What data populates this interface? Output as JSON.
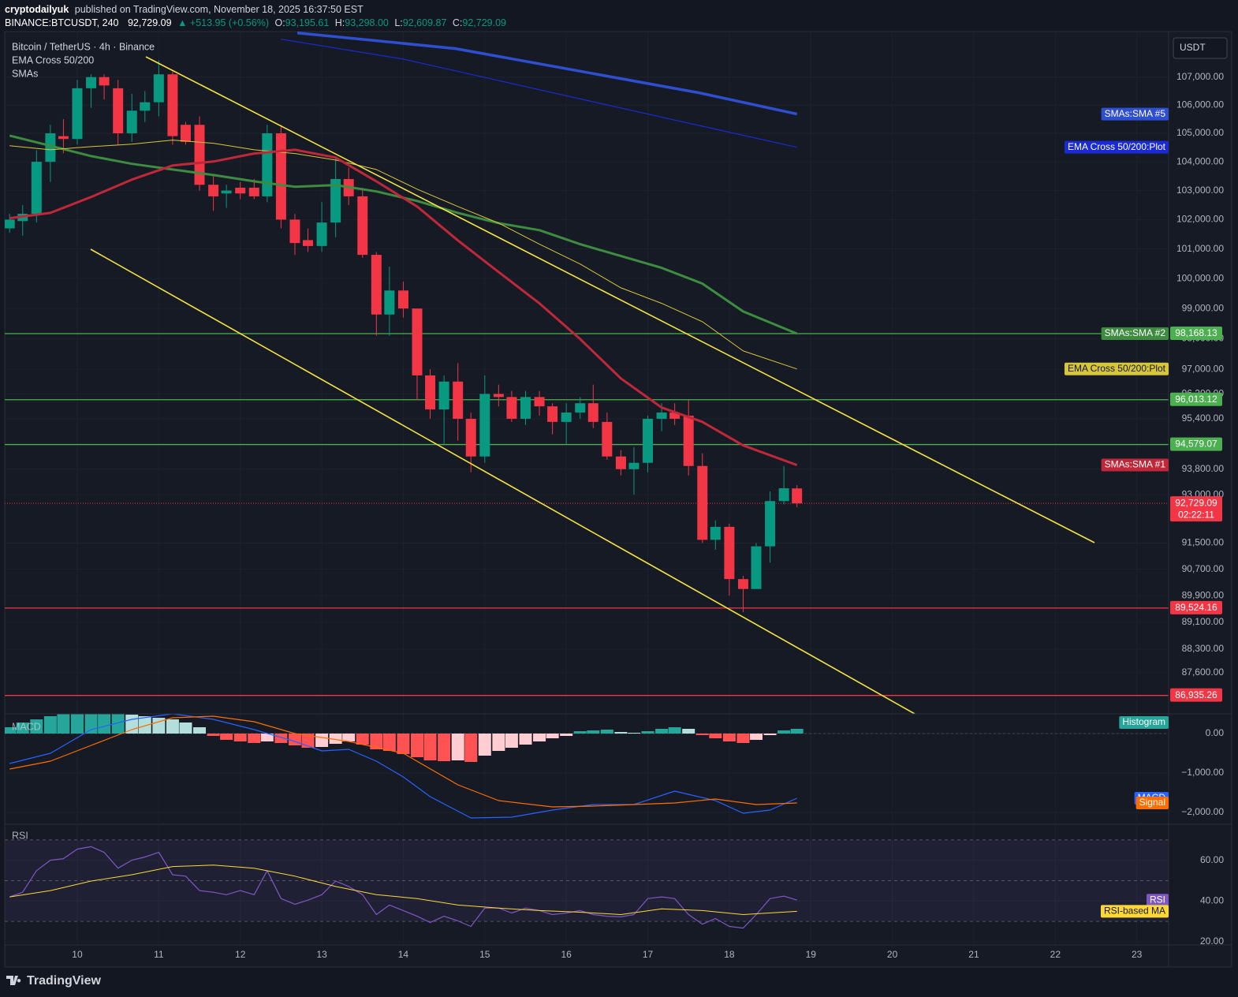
{
  "header": {
    "author": "cryptodailyuk",
    "published": "published on TradingView.com, November 18, 2025 16:37:50 EST",
    "symbol": "BINANCE:BTCUSDT, 240",
    "price": "92,729.09",
    "change": "▲ +513.95 (+0.56%)",
    "ohlc": [
      {
        "label": "O:",
        "value": "93,195.61"
      },
      {
        "label": "H:",
        "value": "93,298.00"
      },
      {
        "label": "L:",
        "value": "92,609.87"
      },
      {
        "label": "C:",
        "value": "92,729.09"
      }
    ]
  },
  "footer": {
    "brand": "TradingView"
  },
  "chart_data": [
    {
      "type": "candlestick",
      "title": "Bitcoin / TetherUS · 4h · Binance",
      "legend": [
        "EMA Cross 50/200",
        "SMAs"
      ],
      "currency": "USDT",
      "log_scale": true,
      "grid": true,
      "up_color": "#089981",
      "down_color": "#f23645",
      "x": [
        9.17,
        9.33,
        9.5,
        9.67,
        9.83,
        10,
        10.17,
        10.33,
        10.5,
        10.67,
        10.83,
        11,
        11.17,
        11.33,
        11.5,
        11.67,
        11.83,
        12,
        12.17,
        12.33,
        12.5,
        12.67,
        12.83,
        13,
        13.17,
        13.33,
        13.5,
        13.67,
        13.83,
        14,
        14.17,
        14.33,
        14.5,
        14.67,
        14.83,
        15,
        15.17,
        15.33,
        15.5,
        15.67,
        15.83,
        16,
        16.17,
        16.33,
        16.5,
        16.67,
        16.83,
        17,
        17.17,
        17.33,
        17.5,
        17.67,
        17.83,
        18,
        18.17,
        18.33,
        18.5,
        18.67,
        18.83
      ],
      "open": [
        101700,
        101950,
        102200,
        104000,
        104900,
        104800,
        106600,
        107000,
        106600,
        105000,
        105800,
        106100,
        107100,
        105300,
        105300,
        103200,
        102900,
        103100,
        103100,
        102800,
        105000,
        102000,
        101300,
        101100,
        101900,
        103400,
        102800,
        100800,
        98800,
        99600,
        99000,
        96800,
        95700,
        96600,
        95400,
        94200,
        96200,
        96100,
        95400,
        96100,
        95800,
        95300,
        95600,
        95900,
        95300,
        94200,
        93800,
        94000,
        95400,
        95600,
        95500,
        93900,
        91600,
        92000,
        90400,
        90100,
        91400,
        92800,
        93195.61
      ],
      "high": [
        102200,
        102500,
        104400,
        105300,
        105500,
        106900,
        107100,
        107100,
        106900,
        106400,
        106500,
        107600,
        107200,
        105400,
        105600,
        103500,
        103200,
        103300,
        103400,
        105300,
        105300,
        102200,
        101700,
        102600,
        104100,
        103800,
        103100,
        100900,
        100400,
        99900,
        99000,
        97000,
        96800,
        97200,
        95600,
        96800,
        96500,
        96300,
        96300,
        96300,
        95900,
        95900,
        96100,
        96500,
        95600,
        94400,
        94500,
        95500,
        95900,
        95900,
        96000,
        94300,
        92200,
        92100,
        90500,
        91500,
        93100,
        93900,
        93298
      ],
      "low": [
        101550,
        101450,
        101900,
        103300,
        104300,
        104600,
        105900,
        106200,
        104600,
        104700,
        105400,
        105600,
        104600,
        104600,
        103000,
        102300,
        102400,
        102700,
        102700,
        102600,
        101700,
        100800,
        100900,
        100900,
        101400,
        102500,
        100700,
        98100,
        98100,
        98700,
        96000,
        95400,
        94600,
        94700,
        93700,
        94000,
        95800,
        95300,
        95200,
        95500,
        94900,
        94600,
        95400,
        95100,
        94100,
        93600,
        93000,
        93700,
        95000,
        95200,
        93600,
        91500,
        91300,
        89900,
        89400,
        90100,
        90900,
        92700,
        92609.87
      ],
      "close": [
        102000,
        102200,
        104000,
        105000,
        104800,
        106600,
        107000,
        106700,
        105000,
        105800,
        106100,
        107100,
        104900,
        104700,
        103200,
        102800,
        103000,
        102900,
        102800,
        105000,
        102000,
        101200,
        101100,
        101900,
        103400,
        102800,
        100800,
        98800,
        99600,
        99000,
        96800,
        95700,
        96600,
        95400,
        94200,
        96200,
        96100,
        95400,
        96100,
        95800,
        95300,
        95600,
        95900,
        95300,
        94200,
        93800,
        94000,
        95400,
        95600,
        95400,
        93900,
        91600,
        92000,
        90400,
        90100,
        91400,
        92800,
        93200,
        92729.09
      ],
      "xlim": [
        9.11,
        23.39
      ],
      "xticks": [
        10,
        11,
        12,
        13,
        14,
        15,
        16,
        17,
        18,
        19,
        20,
        21,
        22,
        23
      ],
      "ylim": [
        86400,
        108650
      ],
      "yticks": [
        {
          "value": 107000,
          "label": "107,000.00"
        },
        {
          "value": 106000,
          "label": "106,000.00"
        },
        {
          "value": 105000,
          "label": "105,000.00"
        },
        {
          "value": 104000,
          "label": "104,000.00"
        },
        {
          "value": 103000,
          "label": "103,000.00"
        },
        {
          "value": 102000,
          "label": "102,000.00"
        },
        {
          "value": 101000,
          "label": "101,000.00"
        },
        {
          "value": 100000,
          "label": "100,000.00"
        },
        {
          "value": 99000,
          "label": "99,000.00"
        },
        {
          "value": 98000,
          "label": "98,000.00"
        },
        {
          "value": 97000,
          "label": "97,000.00"
        },
        {
          "value": 96200,
          "label": "96,200.00"
        },
        {
          "value": 95400,
          "label": "95,400.00"
        },
        {
          "value": 93800,
          "label": "93,800.00"
        },
        {
          "value": 93000,
          "label": "93,000.00"
        },
        {
          "value": 91500,
          "label": "91,500.00"
        },
        {
          "value": 90700,
          "label": "90,700.00"
        },
        {
          "value": 89900,
          "label": "89,900.00"
        },
        {
          "value": 89100,
          "label": "89,100.00"
        },
        {
          "value": 88300,
          "label": "88,300.00"
        },
        {
          "value": 87600,
          "label": "87,600.00"
        }
      ],
      "series": [
        {
          "name": "SMAs:SMA #5",
          "color": "#2f4fd1",
          "line_width": 3.5,
          "x": [
            12.7,
            14.64,
            16.14,
            17.64,
            18.83
          ],
          "values": [
            108600,
            108030,
            107230,
            106430,
            105680
          ]
        },
        {
          "name": "EMA Cross 50/200:Plot",
          "color": "#1a2bd6",
          "line_width": 1.2,
          "x": [
            12.5,
            14,
            15.5,
            17,
            18.83
          ],
          "values": [
            108370,
            107650,
            106660,
            105680,
            104510
          ]
        },
        {
          "name": "SMAs:SMA #2",
          "color": "#3d8c40",
          "line_width": 3,
          "x": [
            9.17,
            9.67,
            10.17,
            10.67,
            11.17,
            11.67,
            12.17,
            12.67,
            13.17,
            13.67,
            14.17,
            14.67,
            15.17,
            15.67,
            16.17,
            16.67,
            17.17,
            17.67,
            18.17,
            18.83
          ],
          "values": [
            104920,
            104560,
            104200,
            103930,
            103730,
            103540,
            103320,
            103130,
            103190,
            102970,
            102640,
            102230,
            101880,
            101640,
            101160,
            100760,
            100360,
            99830,
            98900,
            98168
          ]
        },
        {
          "name": "EMA Cross 50/200:Plot",
          "color": "#d8c63a",
          "line_width": 1,
          "x": [
            9.17,
            9.67,
            10.17,
            10.67,
            11.17,
            11.67,
            12.17,
            12.67,
            13.17,
            13.67,
            14.17,
            14.67,
            15.17,
            15.67,
            16.17,
            16.67,
            17.17,
            17.67,
            18.17,
            18.83
          ],
          "values": [
            104560,
            104420,
            104530,
            104620,
            104760,
            104650,
            104420,
            104290,
            104060,
            103730,
            103050,
            102450,
            101880,
            101160,
            100490,
            99690,
            99170,
            98560,
            97600,
            97010
          ]
        },
        {
          "name": "SMAs:SMA #1",
          "color": "#c0283a",
          "line_width": 3,
          "x": [
            9.17,
            9.67,
            10.17,
            10.67,
            11.17,
            11.67,
            12.17,
            12.67,
            13.17,
            13.67,
            14.17,
            14.67,
            15.17,
            15.67,
            16.17,
            16.67,
            17.17,
            17.67,
            18.17,
            18.83
          ],
          "values": [
            102050,
            102230,
            102780,
            103380,
            103870,
            104010,
            104290,
            104420,
            104150,
            103320,
            102450,
            101290,
            100220,
            99170,
            97990,
            96700,
            95760,
            95300,
            94550,
            93930
          ]
        }
      ],
      "levels": [
        {
          "value": 98168.13,
          "label": "98,168.13",
          "color": "#4caf50"
        },
        {
          "value": 96013.12,
          "label": "96,013.12",
          "color": "#4caf50"
        },
        {
          "value": 94579.07,
          "label": "94,579.07",
          "color": "#4caf50"
        },
        {
          "value": 89524.16,
          "label": "89,524.16",
          "color": "#f23645"
        },
        {
          "value": 86935.26,
          "label": "86,935.26",
          "color": "#f23645"
        }
      ],
      "last": {
        "value": 92729.09,
        "label": "92,729.09",
        "countdown": "02:22:11",
        "color": "#f23645"
      }
    },
    {
      "type": "macd",
      "title": "MACD",
      "grid": true,
      "x": [
        9.17,
        9.33,
        9.5,
        9.67,
        9.83,
        10,
        10.17,
        10.33,
        10.5,
        10.67,
        10.83,
        11,
        11.17,
        11.33,
        11.5,
        11.67,
        11.83,
        12,
        12.17,
        12.33,
        12.5,
        12.67,
        12.83,
        13,
        13.17,
        13.33,
        13.5,
        13.67,
        13.83,
        14,
        14.17,
        14.33,
        14.5,
        14.67,
        14.83,
        15,
        15.17,
        15.33,
        15.5,
        15.67,
        15.83,
        16,
        16.17,
        16.33,
        16.5,
        16.67,
        16.83,
        17,
        17.17,
        17.33,
        17.5,
        17.67,
        17.83,
        18,
        18.17,
        18.33,
        18.5,
        18.67,
        18.83
      ],
      "histogram": {
        "name": "Histogram",
        "colors": {
          "grow_above": "#26a69a",
          "fall_above": "#b2dfdb",
          "grow_below": "#ff5252",
          "fall_below": "#ffcdd2"
        },
        "values": [
          160,
          280,
          360,
          440,
          500,
          500,
          500,
          500,
          500,
          480,
          440,
          400,
          360,
          280,
          160,
          -60,
          -160,
          -200,
          -240,
          -200,
          -240,
          -300,
          -360,
          -340,
          -260,
          -200,
          -280,
          -400,
          -440,
          -520,
          -600,
          -680,
          -700,
          -680,
          -720,
          -560,
          -440,
          -360,
          -280,
          -200,
          -120,
          -60,
          60,
          80,
          100,
          40,
          20,
          60,
          120,
          160,
          120,
          -40,
          -120,
          -200,
          -240,
          -160,
          -40,
          80,
          120
        ]
      },
      "series": [
        {
          "name": "MACD",
          "color": "#2962ff",
          "line_width": 1.2,
          "x": [
            9.17,
            9.67,
            10.17,
            10.67,
            11.17,
            11.67,
            12.17,
            12.67,
            13,
            13.33,
            13.67,
            14,
            14.33,
            14.83,
            15.33,
            15.83,
            16.33,
            16.83,
            17.33,
            17.83,
            18.17,
            18.5,
            18.83
          ],
          "values": [
            -760,
            -500,
            100,
            360,
            500,
            360,
            100,
            -200,
            -440,
            -400,
            -700,
            -1100,
            -1600,
            -2140,
            -2120,
            -1940,
            -1800,
            -1800,
            -1460,
            -1700,
            -2020,
            -1940,
            -1640
          ]
        },
        {
          "name": "Signal",
          "color": "#ff6d00",
          "line_width": 1.2,
          "x": [
            9.17,
            9.67,
            10.17,
            10.67,
            11.17,
            11.67,
            12.17,
            12.67,
            13.33,
            14,
            14.67,
            15.17,
            15.83,
            16.33,
            16.83,
            17.33,
            17.83,
            18.33,
            18.83
          ],
          "values": [
            -900,
            -700,
            -300,
            100,
            400,
            440,
            300,
            0,
            -200,
            -500,
            -1300,
            -1700,
            -1860,
            -1840,
            -1800,
            -1760,
            -1660,
            -1800,
            -1760
          ]
        }
      ],
      "ylim": [
        -2260,
        500
      ],
      "yticks": [
        {
          "value": 0,
          "label": "0.00"
        },
        {
          "value": -1000,
          "label": "−1,000.00"
        },
        {
          "value": -2000,
          "label": "−2,000.00"
        }
      ]
    },
    {
      "type": "line",
      "title": "RSI",
      "grid": true,
      "levels": [
        70,
        50,
        30
      ],
      "band_color": "#7e57c2",
      "series": [
        {
          "name": "RSI",
          "color": "#7e57c2",
          "line_width": 1.2,
          "x": [
            9.17,
            9.33,
            9.5,
            9.67,
            9.83,
            10,
            10.17,
            10.33,
            10.5,
            10.67,
            10.83,
            11,
            11.17,
            11.33,
            11.5,
            11.67,
            11.83,
            12,
            12.17,
            12.33,
            12.5,
            12.67,
            12.83,
            13,
            13.17,
            13.33,
            13.5,
            13.67,
            13.83,
            14,
            14.17,
            14.33,
            14.5,
            14.67,
            14.83,
            15,
            15.17,
            15.33,
            15.5,
            15.67,
            15.83,
            16,
            16.17,
            16.33,
            16.5,
            16.67,
            16.83,
            17,
            17.17,
            17.33,
            17.5,
            17.67,
            17.83,
            18,
            18.17,
            18.33,
            18.5,
            18.67,
            18.83
          ],
          "values": [
            42.0,
            44.3,
            54.9,
            60,
            60.8,
            65.5,
            66.7,
            63.9,
            56.1,
            60,
            61.6,
            63.9,
            52.9,
            52.2,
            45.1,
            44.3,
            43.1,
            45.1,
            43.1,
            54.9,
            41.2,
            38.4,
            40.4,
            43.1,
            49.8,
            47.1,
            43.1,
            33.3,
            38.0,
            35.3,
            32.5,
            29.4,
            32.5,
            30.2,
            27.5,
            36.5,
            36.5,
            34.1,
            36.5,
            35.3,
            33.3,
            34.1,
            35.3,
            33.3,
            32.5,
            32.2,
            33.3,
            41.2,
            42.0,
            41.2,
            33.3,
            28.6,
            31.4,
            27.5,
            26.7,
            33.3,
            41.2,
            42.4,
            40.4
          ]
        },
        {
          "name": "RSI-based MA",
          "color": "#fdd835",
          "line_width": 1,
          "x": [
            9.17,
            9.67,
            10.17,
            10.67,
            11.17,
            11.67,
            12.17,
            12.67,
            13.17,
            13.67,
            14.17,
            14.67,
            15.17,
            15.67,
            16.17,
            16.67,
            17.17,
            17.67,
            18.17,
            18.83
          ],
          "values": [
            42.0,
            45.1,
            49.8,
            52.9,
            56.9,
            57.6,
            56.1,
            52.2,
            47.1,
            43.1,
            41.2,
            38.0,
            36.5,
            35.3,
            34.5,
            33.3,
            36.1,
            35.3,
            33.3,
            34.9
          ]
        }
      ],
      "ylim": [
        18.4,
        77.3
      ],
      "yticks": [
        {
          "value": 20,
          "label": "20.00"
        },
        {
          "value": 40,
          "label": "40.00"
        },
        {
          "value": 60,
          "label": "60.00"
        }
      ]
    }
  ]
}
